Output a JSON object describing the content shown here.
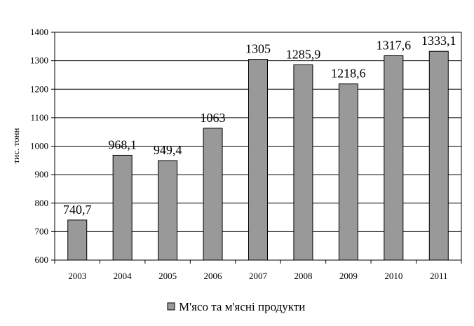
{
  "chart_data": {
    "type": "bar",
    "categories": [
      "2003",
      "2004",
      "2005",
      "2006",
      "2007",
      "2008",
      "2009",
      "2010",
      "2011"
    ],
    "series": [
      {
        "name": "М'ясо та м'ясні продукти",
        "values": [
          740.7,
          968.1,
          949.4,
          1063,
          1305,
          1285.9,
          1218.6,
          1317.6,
          1333.1
        ],
        "labels": [
          "740,7",
          "968,1",
          "949,4",
          "1063",
          "1305",
          "1285,9",
          "1218,6",
          "1317,6",
          "1333,1"
        ]
      }
    ],
    "ylabel": "тис. тонн",
    "ylim": [
      600,
      1400
    ],
    "yticks": [
      600,
      700,
      800,
      900,
      1000,
      1100,
      1200,
      1300,
      1400
    ],
    "grid": true,
    "legend_position": "bottom",
    "colors": {
      "bar": "#999999",
      "bar_stroke": "#000000",
      "grid": "#000000"
    }
  }
}
